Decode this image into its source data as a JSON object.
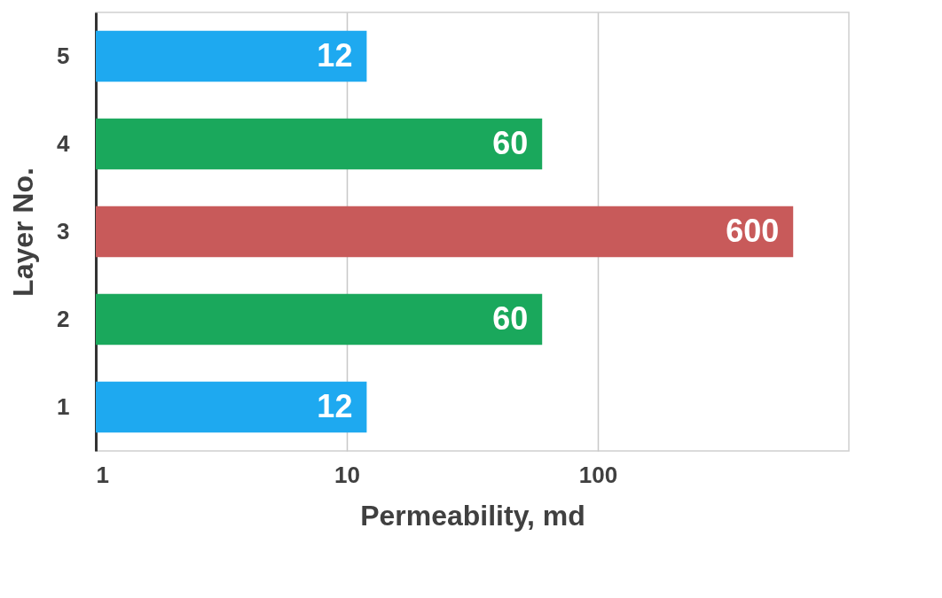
{
  "chart_data": {
    "type": "bar",
    "orientation": "horizontal",
    "xlabel": "Permeability, md",
    "ylabel": "Layer No.",
    "categories": [
      "5",
      "4",
      "3",
      "2",
      "1"
    ],
    "values": [
      12,
      60,
      600,
      60,
      12
    ],
    "colors": [
      "#1ea9f0",
      "#1aa85c",
      "#c85a5a",
      "#1aa85c",
      "#1ea9f0"
    ],
    "xlim": [
      1,
      1000
    ],
    "xticks": [
      1,
      10,
      100
    ],
    "log": "x",
    "grid": "x",
    "data_labels": true
  }
}
